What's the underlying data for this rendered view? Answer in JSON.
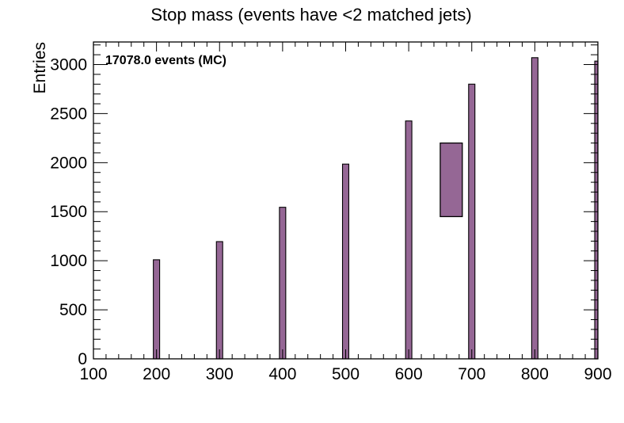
{
  "chart_data": {
    "type": "bar",
    "title": "Stop mass (events have <2 matched jets)",
    "xlabel": "",
    "ylabel": "Entries",
    "annotation": "17078.0 events (MC)",
    "xlim": [
      100,
      900
    ],
    "ylim": [
      0,
      3230
    ],
    "x_ticks": [
      100,
      200,
      300,
      400,
      500,
      600,
      700,
      800,
      900
    ],
    "x_tick_labels": [
      "100",
      "200",
      "300",
      "400",
      "500",
      "600",
      "700",
      "800",
      "900"
    ],
    "y_ticks": [
      0,
      500,
      1000,
      1500,
      2000,
      2500,
      3000
    ],
    "y_tick_labels": [
      "0",
      "500",
      "1000",
      "1500",
      "2000",
      "2500",
      "3000"
    ],
    "bin_width": 10,
    "bins": [
      {
        "x": 200,
        "value": 1010
      },
      {
        "x": 300,
        "value": 1195
      },
      {
        "x": 400,
        "value": 1545
      },
      {
        "x": 500,
        "value": 1985
      },
      {
        "x": 600,
        "value": 2425
      },
      {
        "x": 700,
        "value": 2800
      },
      {
        "x": 800,
        "value": 3070
      },
      {
        "x": 900,
        "value": 3035
      }
    ],
    "legend_box": {
      "x_range": [
        650,
        685
      ],
      "y_range": [
        1450,
        2200
      ]
    },
    "colors": {
      "fill": "#956795",
      "edge": "#000000"
    },
    "grid": false
  }
}
